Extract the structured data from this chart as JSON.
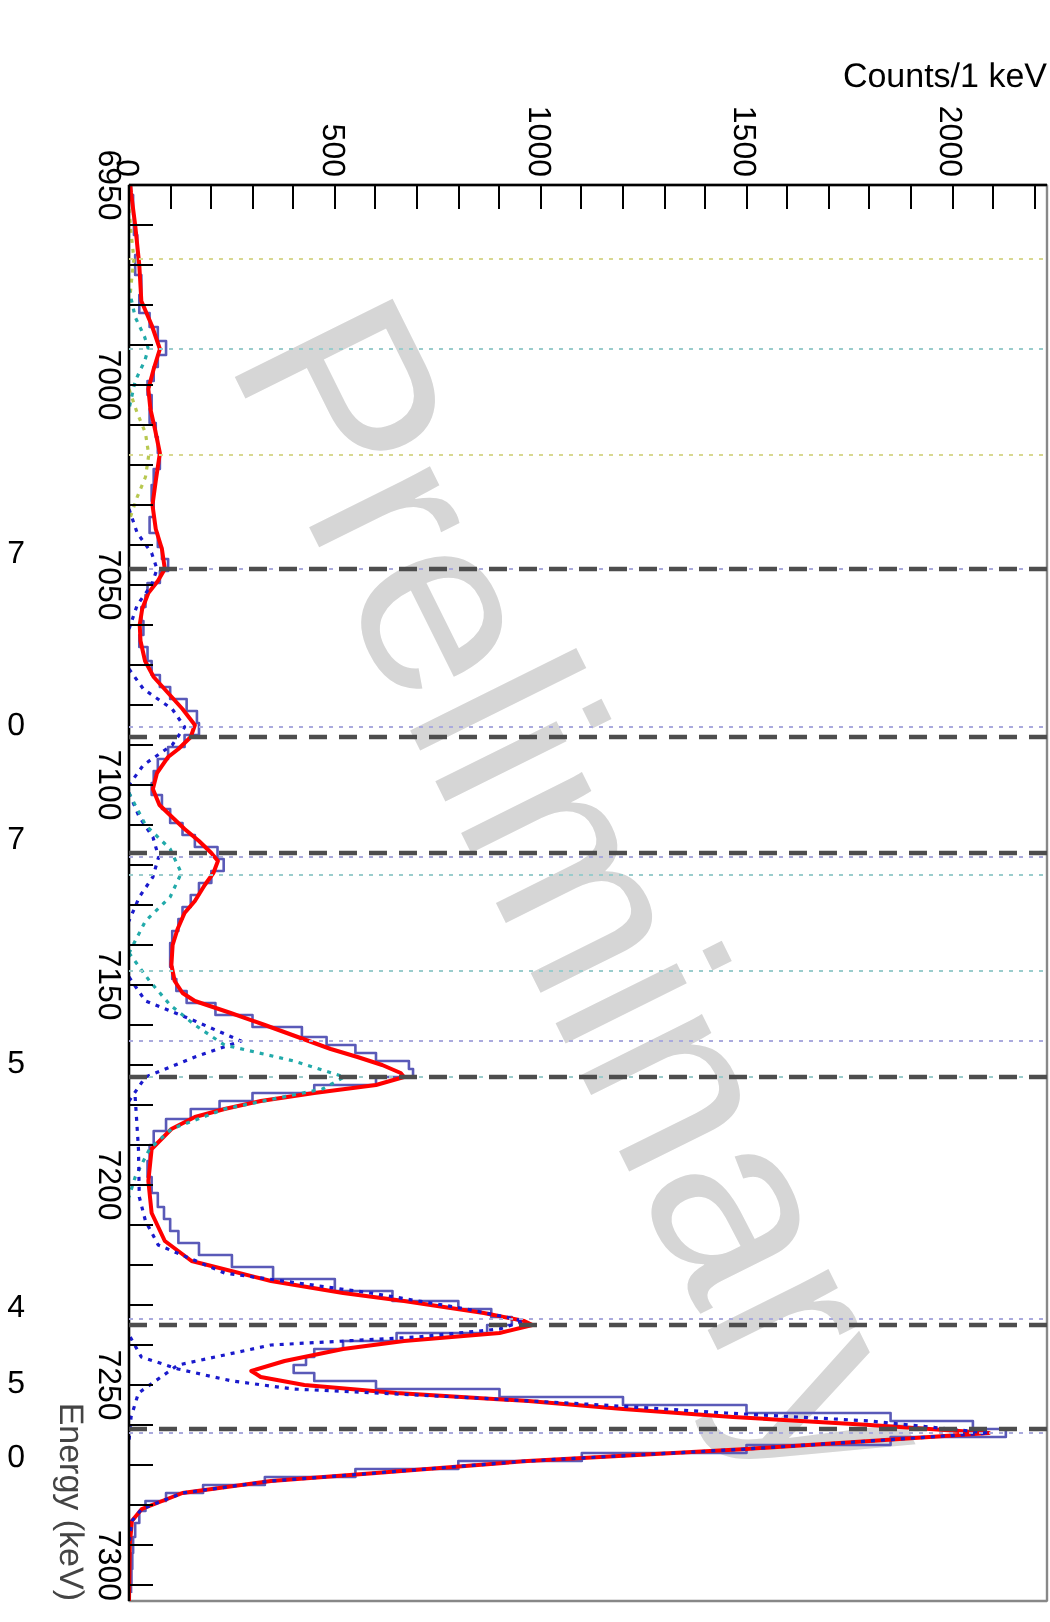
{
  "chart_data": {
    "type": "line",
    "orientation": "horizontal",
    "xlabel": "Counts/1 keV",
    "ylabel": "Energy (keV)",
    "annotations": [
      "Preliminary",
      "7",
      "0",
      "7",
      "5",
      "4",
      "5",
      "0"
    ],
    "xlim": [
      0,
      2230
    ],
    "xticks": [
      0,
      {
        "value": 100,
        "label": null
      },
      {
        "value": 200,
        "label": null
      },
      {
        "value": 300,
        "label": null
      },
      {
        "value": 400,
        "label": null
      },
      500,
      {
        "value": 600,
        "label": null
      },
      {
        "value": 700,
        "label": null
      },
      {
        "value": 800,
        "label": null
      },
      {
        "value": 900,
        "label": null
      },
      1000,
      {
        "value": 1100,
        "label": null
      },
      {
        "value": 1200,
        "label": null
      },
      {
        "value": 1300,
        "label": null
      },
      {
        "value": 1400,
        "label": null
      },
      1500,
      {
        "value": 1600,
        "label": null
      },
      {
        "value": 1700,
        "label": null
      },
      {
        "value": 1800,
        "label": null
      },
      {
        "value": 1900,
        "label": null
      },
      2000,
      {
        "value": 2100,
        "label": null
      },
      {
        "value": 2200,
        "label": null
      }
    ],
    "ylim": [
      7304,
      6950
    ],
    "yticks": [
      6950,
      {
        "value": 6960,
        "label": null
      },
      {
        "value": 6970,
        "label": null
      },
      {
        "value": 6980,
        "label": null
      },
      {
        "value": 6990,
        "label": null
      },
      7000,
      {
        "value": 7010,
        "label": null
      },
      {
        "value": 7020,
        "label": null
      },
      {
        "value": 7030,
        "label": null
      },
      {
        "value": 7040,
        "label": null
      },
      7050,
      {
        "value": 7060,
        "label": null
      },
      {
        "value": 7070,
        "label": null
      },
      {
        "value": 7080,
        "label": null
      },
      {
        "value": 7090,
        "label": null
      },
      7100,
      {
        "value": 7110,
        "label": null
      },
      {
        "value": 7120,
        "label": null
      },
      {
        "value": 7130,
        "label": null
      },
      {
        "value": 7140,
        "label": null
      },
      7150,
      {
        "value": 7160,
        "label": null
      },
      {
        "value": 7170,
        "label": null
      },
      {
        "value": 7180,
        "label": null
      },
      {
        "value": 7190,
        "label": null
      },
      7200,
      {
        "value": 7210,
        "label": null
      },
      {
        "value": 7220,
        "label": null
      },
      {
        "value": 7230,
        "label": null
      },
      {
        "value": 7240,
        "label": null
      },
      7250,
      {
        "value": 7260,
        "label": null
      },
      {
        "value": 7270,
        "label": null
      },
      {
        "value": 7280,
        "label": null
      },
      {
        "value": 7290,
        "label": null
      },
      7300
    ],
    "grid": false,
    "series": [
      {
        "type": "step",
        "color": "#5a5ab8",
        "line_style": "solid",
        "x": [
          6950,
          6955,
          6960,
          6965,
          6970,
          6975,
          6980,
          6984,
          6987,
          6991,
          6994,
          6997,
          7001,
          7004,
          7008,
          7011,
          7015,
          7019,
          7023,
          7027,
          7031,
          7035,
          7039,
          7042,
          7045,
          7048,
          7051,
          7054,
          7057,
          7061,
          7064,
          7067,
          7071,
          7074,
          7077,
          7080,
          7083,
          7086,
          7089,
          7092,
          7095,
          7098,
          7101,
          7104,
          7108,
          7111,
          7114,
          7117,
          7120,
          7123,
          7126,
          7129,
          7132,
          7135,
          7138,
          7141,
          7144,
          7147,
          7150,
          7153,
          7156,
          7159,
          7162,
          7164,
          7166,
          7168,
          7170,
          7172,
          7174,
          7176,
          7178,
          7180,
          7182,
          7185,
          7188,
          7192,
          7196,
          7200,
          7204,
          7207,
          7210,
          7213,
          7216,
          7219,
          7222,
          7225,
          7228,
          7230,
          7232,
          7234,
          7236,
          7238,
          7240,
          7242,
          7244,
          7246,
          7248,
          7250,
          7252,
          7254,
          7256,
          7258,
          7260,
          7262,
          7264,
          7266,
          7268,
          7270,
          7272,
          7274,
          7276,
          7278,
          7280,
          7283,
          7286,
          7290,
          7294,
          7298,
          7302
        ],
        "values": [
          5,
          10,
          12,
          20,
          15,
          30,
          25,
          50,
          70,
          90,
          70,
          60,
          45,
          55,
          50,
          65,
          70,
          75,
          60,
          55,
          60,
          50,
          70,
          80,
          95,
          75,
          45,
          40,
          30,
          35,
          25,
          45,
          55,
          75,
          100,
          140,
          165,
          170,
          135,
          95,
          70,
          60,
          55,
          80,
          100,
          130,
          160,
          215,
          230,
          200,
          170,
          150,
          130,
          120,
          105,
          100,
          100,
          105,
          115,
          140,
          210,
          300,
          420,
          480,
          550,
          600,
          680,
          690,
          600,
          450,
          300,
          220,
          150,
          90,
          60,
          50,
          45,
          55,
          70,
          85,
          100,
          120,
          170,
          250,
          350,
          500,
          640,
          800,
          880,
          930,
          870,
          650,
          520,
          450,
          430,
          400,
          450,
          600,
          900,
          1200,
          1500,
          1850,
          2050,
          2130,
          1850,
          1500,
          1100,
          800,
          550,
          330,
          180,
          90,
          40,
          25,
          15,
          10,
          8,
          6,
          5
        ]
      },
      {
        "type": "line",
        "color": "#ff0000",
        "line_style": "solid",
        "x": [
          6950,
          6952,
          6960,
          6970,
          6979,
          6985,
          6991,
          6996,
          7001,
          7006,
          7011,
          7017,
          7024,
          7030,
          7036,
          7041,
          7046,
          7049,
          7052,
          7056,
          7060,
          7064,
          7069,
          7073,
          7077,
          7081,
          7085,
          7088,
          7091,
          7093,
          7097,
          7101,
          7105,
          7111,
          7114,
          7117,
          7119,
          7122,
          7125,
          7129,
          7132,
          7136,
          7140,
          7145,
          7149,
          7152,
          7154,
          7157,
          7160,
          7163,
          7166,
          7168,
          7170,
          7172,
          7173,
          7175,
          7177,
          7179,
          7181,
          7183,
          7186,
          7191,
          7199,
          7207,
          7214,
          7219,
          7224,
          7227,
          7229,
          7232,
          7234,
          7235,
          7237,
          7239,
          7241,
          7244,
          7246.5,
          7248,
          7250,
          7252,
          7254,
          7256,
          7258,
          7260,
          7262,
          7264,
          7266,
          7269,
          7272,
          7274,
          7277,
          7281,
          7284,
          7290,
          7304
        ],
        "values": [
          3,
          5,
          15,
          25,
          30,
          55,
          75,
          60,
          47,
          52,
          63,
          75,
          65,
          57,
          65,
          80,
          87,
          70,
          47,
          32,
          26,
          28,
          39,
          60,
          95,
          130,
          160,
          150,
          120,
          95,
          68,
          58,
          74,
          135,
          170,
          200,
          216,
          205,
          184,
          160,
          135,
          118,
          106,
          103,
          111,
          130,
          160,
          247,
          330,
          410,
          490,
          555,
          615,
          660,
          668,
          600,
          450,
          320,
          232,
          160,
          103,
          55,
          47,
          55,
          87,
          152,
          345,
          520,
          668,
          862,
          960,
          980,
          900,
          668,
          520,
          378,
          297,
          320,
          426,
          650,
          970,
          1200,
          1467,
          1800,
          2089,
          1800,
          1500,
          968,
          600,
          345,
          130,
          31,
          7,
          2,
          0
        ]
      },
      {
        "color": "#b8c850",
        "line_style": "dotted",
        "x": [
          6956,
          6962,
          6968.5,
          6975,
          6981
        ],
        "values": [
          0,
          5,
          12,
          5,
          0
        ]
      },
      {
        "color": "#22aaaa",
        "line_style": "dotted",
        "x": [
          6976,
          6983,
          6988,
          6991,
          6994,
          6999,
          7006
        ],
        "values": [
          0,
          15,
          38,
          47,
          38,
          15,
          0
        ]
      },
      {
        "color": "#b8c850",
        "line_style": "dotted",
        "x": [
          7001,
          7007,
          7012,
          7017.5,
          7023,
          7028,
          7034
        ],
        "values": [
          0,
          20,
          40,
          48,
          40,
          20,
          0
        ]
      },
      {
        "color": "#1a1acc",
        "line_style": "dotted",
        "x": [
          7031,
          7037,
          7042,
          7046,
          7050,
          7055,
          7061
        ],
        "values": [
          0,
          20,
          55,
          68,
          55,
          20,
          0
        ]
      },
      {
        "color": "#1a1acc",
        "line_style": "dotted",
        "x": [
          7071,
          7076,
          7081,
          7085.5,
          7090,
          7095,
          7100
        ],
        "values": [
          0,
          35,
          105,
          135,
          105,
          35,
          0
        ]
      },
      {
        "color": "#1a1acc",
        "line_style": "dotted",
        "x": [
          7102,
          7108,
          7113,
          7118,
          7123,
          7128,
          7134
        ],
        "values": [
          0,
          25,
          58,
          72,
          58,
          25,
          0
        ]
      },
      {
        "color": "#22aaaa",
        "line_style": "dotted",
        "x": [
          7102,
          7110,
          7116,
          7122,
          7128,
          7134,
          7142
        ],
        "values": [
          0,
          40,
          100,
          127,
          100,
          40,
          0
        ]
      },
      {
        "color": "#1a1acc",
        "line_style": "dotted",
        "x": [
          7148,
          7154,
          7159,
          7164,
          7168,
          7173,
          7179
        ],
        "values": [
          0,
          40,
          160,
          272,
          160,
          40,
          0
        ]
      },
      {
        "color": "#22aaaa",
        "line_style": "dotted",
        "x": [
          7142,
          7149,
          7155,
          7160,
          7165,
          7169,
          7173,
          7176,
          7181,
          7186,
          7191,
          7198,
          7203
        ],
        "values": [
          0,
          50,
          100,
          160,
          232,
          400,
          523,
          470,
          232,
          103,
          50,
          15,
          0
        ]
      },
      {
        "color": "#1a1acc",
        "line_style": "dotted",
        "x": [
          7178,
          7191,
          7203,
          7209,
          7215,
          7222,
          7227,
          7231,
          7234,
          7236,
          7238,
          7240,
          7245,
          7252,
          7258,
          7264
        ],
        "values": [
          15,
          23,
          25,
          40,
          71,
          232,
          587,
          820,
          960,
          900,
          700,
          345,
          119,
          23,
          5,
          0
        ]
      },
      {
        "color": "#1a1acc",
        "line_style": "dotted",
        "x": [
          7238,
          7243,
          7246,
          7249,
          7251,
          7253,
          7255,
          7257,
          7259,
          7262,
          7264,
          7266,
          7269,
          7272,
          7274,
          7277,
          7281,
          7284,
          7290
        ],
        "values": [
          3,
          30,
          119,
          250,
          400,
          800,
          1150,
          1450,
          1800,
          2089,
          1800,
          1500,
          968,
          600,
          345,
          130,
          31,
          7,
          0
        ]
      }
    ],
    "ref_lines": [
      {
        "axis": "y",
        "value": 6968.5,
        "color": "#d8d890",
        "line_style": "dotted"
      },
      {
        "axis": "y",
        "value": 6991,
        "color": "#99cccc",
        "line_style": "dotted"
      },
      {
        "axis": "y",
        "value": 7017.5,
        "color": "#d8d890",
        "line_style": "dotted"
      },
      {
        "axis": "y",
        "value": 7046,
        "color": "#aaaadd",
        "line_style": "dotted"
      },
      {
        "axis": "y",
        "value": 7085.5,
        "color": "#aaaadd",
        "line_style": "dotted"
      },
      {
        "axis": "y",
        "value": 7118,
        "color": "#aaaadd",
        "line_style": "dotted"
      },
      {
        "axis": "y",
        "value": 7122.5,
        "color": "#99cccc",
        "line_style": "dotted"
      },
      {
        "axis": "y",
        "value": 7146.5,
        "color": "#99cccc",
        "line_style": "dotted"
      },
      {
        "axis": "y",
        "value": 7164,
        "color": "#aaaadd",
        "line_style": "dotted"
      },
      {
        "axis": "y",
        "value": 7173,
        "color": "#99cccc",
        "line_style": "dotted"
      },
      {
        "axis": "y",
        "value": 7233.5,
        "color": "#aaaadd",
        "line_style": "dotted"
      },
      {
        "axis": "y",
        "value": 7262,
        "color": "#aaaadd",
        "line_style": "dotted"
      },
      {
        "axis": "y",
        "value": 7046,
        "color": "#4d4d4d",
        "line_style": "dashed"
      },
      {
        "axis": "y",
        "value": 7088,
        "color": "#4d4d4d",
        "line_style": "dashed"
      },
      {
        "axis": "y",
        "value": 7117,
        "color": "#4d4d4d",
        "line_style": "dashed"
      },
      {
        "axis": "y",
        "value": 7173,
        "color": "#4d4d4d",
        "line_style": "dashed"
      },
      {
        "axis": "y",
        "value": 7235,
        "color": "#4d4d4d",
        "line_style": "dashed"
      },
      {
        "axis": "y",
        "value": 7261,
        "color": "#4d4d4d",
        "line_style": "dashed"
      }
    ]
  }
}
